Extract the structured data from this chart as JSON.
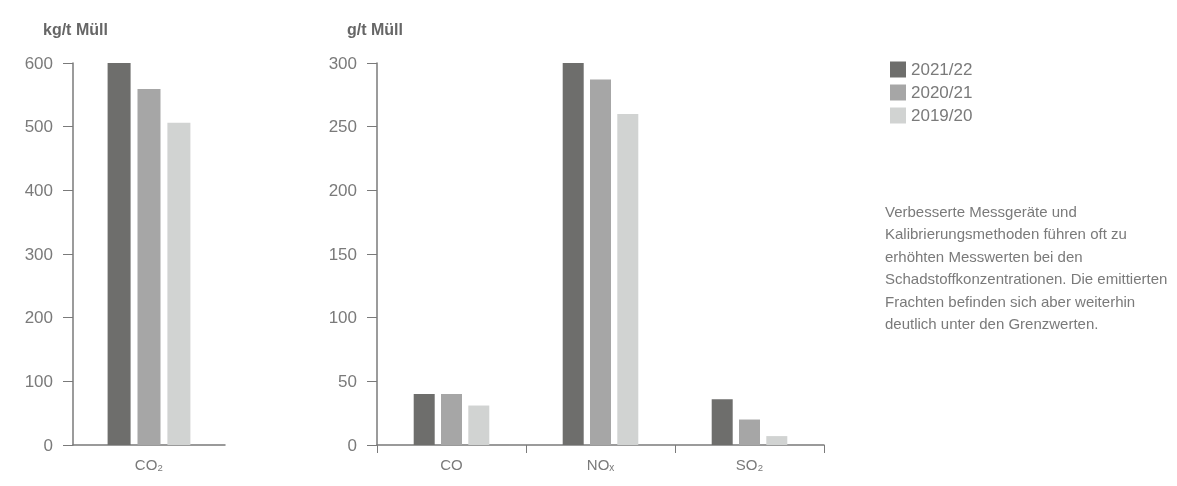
{
  "chart_data": [
    {
      "type": "bar",
      "ylabel": "kg/t Müll",
      "categories": [
        "CO₂"
      ],
      "series": [
        {
          "color": "#6e6e6c",
          "values": [
            600
          ]
        },
        {
          "color": "#a6a6a6",
          "values": [
            559
          ]
        },
        {
          "color": "#d1d3d2",
          "values": [
            506
          ]
        }
      ],
      "ylim": [
        0,
        600
      ],
      "yticks": [
        0,
        100,
        200,
        300,
        400,
        500,
        600
      ],
      "grid": false,
      "legend": false
    },
    {
      "type": "bar",
      "ylabel": "g/t Müll",
      "categories": [
        "CO",
        "NOₓ",
        "SO₂"
      ],
      "series": [
        {
          "name": "2021/22",
          "color": "#6e6e6c",
          "values": [
            40,
            300,
            36
          ]
        },
        {
          "name": "2020/21",
          "color": "#a6a6a6",
          "values": [
            40,
            287,
            20
          ]
        },
        {
          "name": "2019/20",
          "color": "#d1d3d2",
          "values": [
            31,
            260,
            7
          ]
        }
      ],
      "ylim": [
        0,
        300
      ],
      "yticks": [
        0,
        50,
        100,
        150,
        200,
        250,
        300
      ],
      "grid": false,
      "legend": "right",
      "annotations": [
        "Verbesserte Messgeräte und Kalibrierungsmethoden führen oft zu erhöhten Messwerten bei den Schadstoffkonzentrationen. Die emittierten Frachten befinden sich aber weiterhin deutlich unter den Grenzwerten."
      ]
    }
  ]
}
